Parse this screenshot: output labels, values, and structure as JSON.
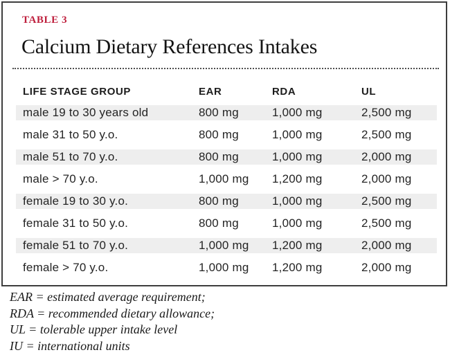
{
  "card": {
    "label": "TABLE 3",
    "title": "Calcium Dietary References Intakes"
  },
  "table": {
    "columns": [
      "LIFE STAGE GROUP",
      "EAR",
      "RDA",
      "UL"
    ],
    "rows": [
      {
        "group": "male 19 to 30 years old",
        "ear": "800 mg",
        "rda": "1,000 mg",
        "ul": "2,500 mg"
      },
      {
        "group": "male 31 to 50 y.o.",
        "ear": "800 mg",
        "rda": "1,000 mg",
        "ul": "2,500 mg"
      },
      {
        "group": "male 51 to 70 y.o.",
        "ear": "800 mg",
        "rda": "1,000 mg",
        "ul": "2,000 mg"
      },
      {
        "group": "male > 70 y.o.",
        "ear": "1,000 mg",
        "rda": "1,200 mg",
        "ul": "2,000 mg"
      },
      {
        "group": "female 19 to 30 y.o.",
        "ear": "800 mg",
        "rda": "1,000 mg",
        "ul": "2,500 mg"
      },
      {
        "group": "female 31 to 50 y.o.",
        "ear": "800 mg",
        "rda": "1,000 mg",
        "ul": "2,500 mg"
      },
      {
        "group": "female 51 to 70 y.o.",
        "ear": "1,000 mg",
        "rda": "1,200 mg",
        "ul": "2,000 mg"
      },
      {
        "group": "female > 70 y.o.",
        "ear": "1,000 mg",
        "rda": "1,200 mg",
        "ul": "2,000 mg"
      }
    ]
  },
  "footnotes": [
    "EAR = estimated average requirement;",
    "RDA = recommended dietary allowance;",
    "UL = tolerable upper intake level",
    "IU = international units"
  ],
  "colors": {
    "accent_red": "#be1e3c",
    "row_stripe": "#eeeeee",
    "border": "#3d3d3d"
  },
  "chart_data": {
    "type": "table",
    "title": "Calcium Dietary References Intakes",
    "columns": [
      "LIFE STAGE GROUP",
      "EAR",
      "RDA",
      "UL"
    ],
    "rows": [
      [
        "male 19 to 30 years old",
        "800 mg",
        "1,000 mg",
        "2,500 mg"
      ],
      [
        "male 31 to 50 y.o.",
        "800 mg",
        "1,000 mg",
        "2,500 mg"
      ],
      [
        "male 51 to 70 y.o.",
        "800 mg",
        "1,000 mg",
        "2,000 mg"
      ],
      [
        "male > 70 y.o.",
        "1,000 mg",
        "1,200 mg",
        "2,000 mg"
      ],
      [
        "female 19 to 30 y.o.",
        "800 mg",
        "1,000 mg",
        "2,500 mg"
      ],
      [
        "female 31 to 50 y.o.",
        "800 mg",
        "1,000 mg",
        "2,500 mg"
      ],
      [
        "female 51 to 70 y.o.",
        "1,000 mg",
        "1,200 mg",
        "2,000 mg"
      ],
      [
        "female > 70 y.o.",
        "1,000 mg",
        "1,200 mg",
        "2,000 mg"
      ]
    ]
  }
}
